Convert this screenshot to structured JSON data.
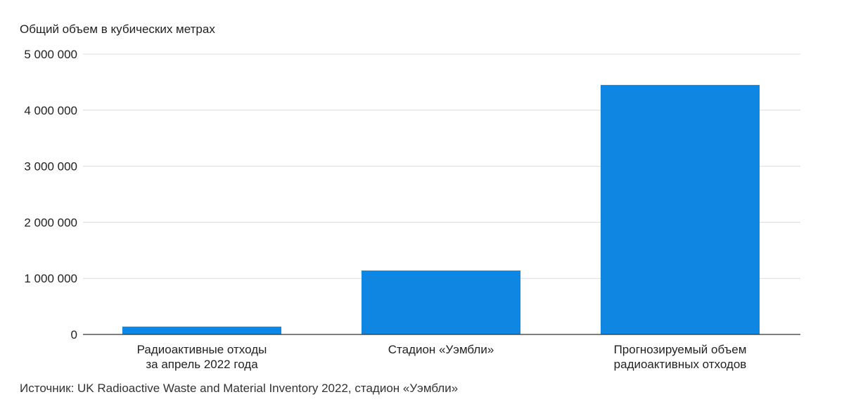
{
  "chart_data": {
    "type": "bar",
    "ylabel": "Общий объем в кубических метрах",
    "categories": [
      [
        "Радиоактивные отходы",
        "за апрель 2022 года"
      ],
      [
        "Стадион «Уэмбли»"
      ],
      [
        "Прогнозируемый объем",
        "радиоактивных отходов"
      ]
    ],
    "values": [
      140000,
      1140000,
      4450000
    ],
    "ylim": [
      0,
      5000000
    ],
    "yticks": [
      0,
      1000000,
      2000000,
      3000000,
      4000000,
      5000000
    ],
    "ytick_labels": [
      "0",
      "1 000 000",
      "2 000 000",
      "3 000 000",
      "4 000 000",
      "5 000 000"
    ],
    "grid": true,
    "bar_color": "#0f87e2"
  },
  "source": "Источник: UK Radioactive Waste and Material Inventory 2022, стадион «Уэмбли»"
}
